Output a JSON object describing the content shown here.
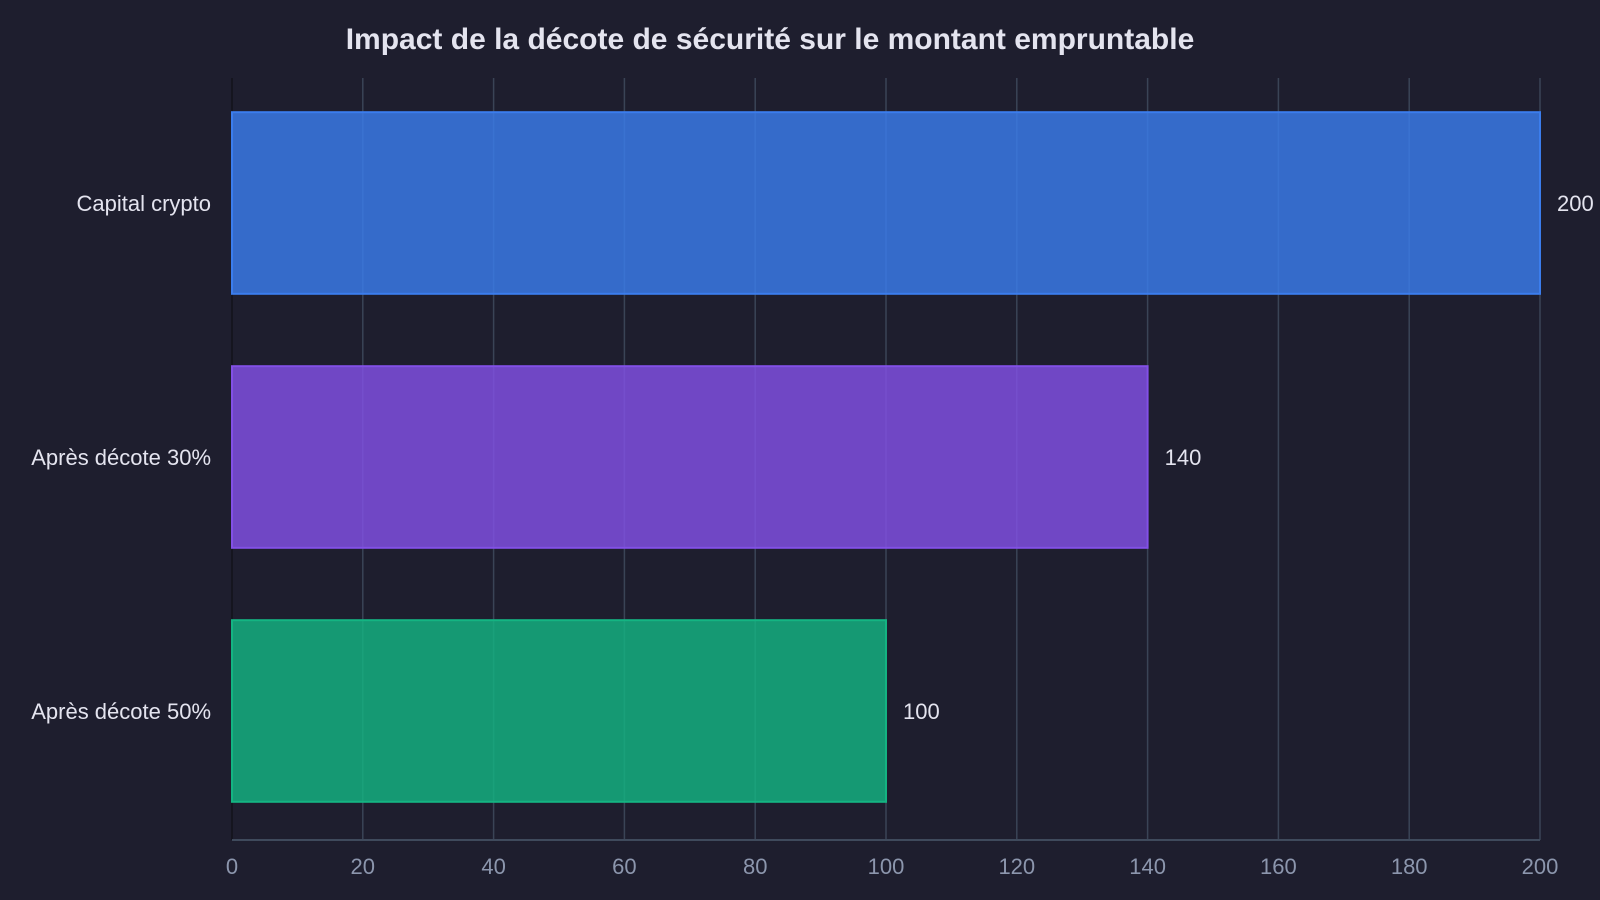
{
  "chart_data": {
    "type": "bar",
    "orientation": "horizontal",
    "title": "Impact de la décote de sécurité sur le montant empruntable",
    "xlabel": "",
    "ylabel": "",
    "categories": [
      "Capital crypto",
      "Après décote 30%",
      "Après décote 50%"
    ],
    "values": [
      200,
      140,
      100
    ],
    "data_labels": [
      "200",
      "140",
      "100"
    ],
    "xlim": [
      0,
      200
    ],
    "x_ticks": [
      0,
      20,
      40,
      60,
      80,
      100,
      120,
      140,
      160,
      180,
      200
    ],
    "grid": true,
    "legend": "none",
    "colors": [
      "#3b7ded",
      "#8250e6",
      "#14b482"
    ],
    "background": "#1e1e2e"
  }
}
